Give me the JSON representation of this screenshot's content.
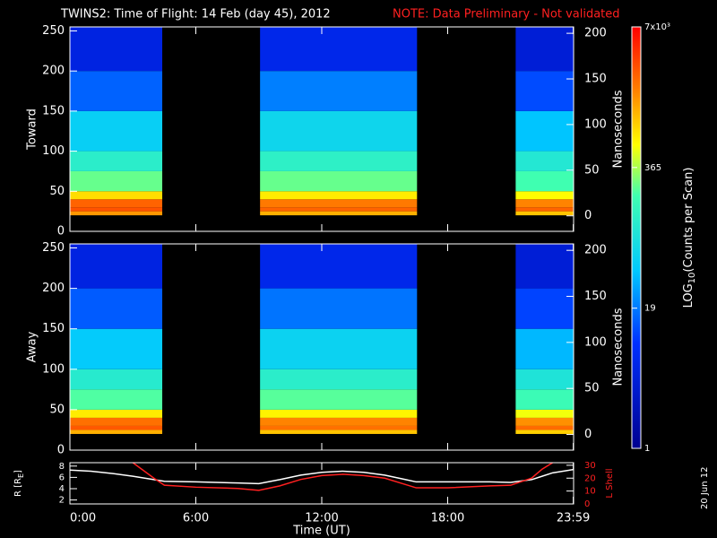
{
  "title": "TWINS2: Time of Flight: 14 Feb (day  45), 2012",
  "note": "NOTE: Data Preliminary - Not validated",
  "date": "20 Jun 12",
  "time_axis": {
    "label": "Time (UT)",
    "xlim": [
      0,
      24
    ],
    "xticks": [
      {
        "value": 0,
        "label": "0:00"
      },
      {
        "value": 6,
        "label": "6:00"
      },
      {
        "value": 12,
        "label": "12:00"
      },
      {
        "value": 18,
        "label": "18:00"
      },
      {
        "value": 23.983,
        "label": "23:59"
      }
    ]
  },
  "colorbar": {
    "label_parts": [
      "LOG",
      "10",
      "(Counts per Scan)"
    ],
    "clim": [
      1,
      7000
    ],
    "log": true,
    "ticks": [
      {
        "value": 7000,
        "label": "7x10³"
      },
      365,
      19,
      1
    ]
  },
  "chart_data": [
    {
      "type": "heatmap",
      "ylabel": "Toward",
      "y2label": "Nanoseconds",
      "ylim": [
        0,
        255
      ],
      "yticks": [
        0,
        50,
        100,
        150,
        200,
        250
      ],
      "y2lim": [
        -17,
        207
      ],
      "y2ticks": [
        0,
        50,
        100,
        150,
        200
      ],
      "channel_bins": [
        20,
        25,
        30,
        40,
        50,
        75,
        100,
        150,
        200,
        255
      ],
      "intervals": [
        [
          0,
          4.4
        ],
        [
          9.06,
          16.54
        ],
        [
          21.24,
          23.983
        ]
      ],
      "counts": [
        [
          1500,
          3000,
          2500,
          800,
          250,
          120,
          50,
          15,
          5
        ],
        [
          1200,
          2500,
          2000,
          700,
          250,
          130,
          60,
          20,
          6
        ],
        [
          1000,
          2500,
          1800,
          600,
          200,
          100,
          40,
          12,
          4
        ]
      ]
    },
    {
      "type": "heatmap",
      "ylabel": "Away",
      "y2label": "Nanoseconds",
      "ylim": [
        0,
        255
      ],
      "yticks": [
        0,
        50,
        100,
        150,
        200,
        250
      ],
      "y2lim": [
        -17,
        207
      ],
      "y2ticks": [
        0,
        50,
        100,
        150,
        200
      ],
      "channel_bins": [
        20,
        25,
        30,
        40,
        50,
        75,
        100,
        150,
        200,
        255
      ],
      "intervals": [
        [
          0,
          4.4
        ],
        [
          9.06,
          16.54
        ],
        [
          21.24,
          23.983
        ]
      ],
      "counts": [
        [
          1200,
          2800,
          2200,
          700,
          220,
          110,
          45,
          14,
          5
        ],
        [
          1000,
          2200,
          1800,
          650,
          230,
          120,
          55,
          18,
          6
        ],
        [
          900,
          2300,
          1600,
          550,
          180,
          90,
          35,
          11,
          4
        ]
      ]
    },
    {
      "type": "line",
      "ylabel_parts": [
        "R [R",
        "E",
        "]"
      ],
      "y2label": "L Shell",
      "ylim": [
        1.3,
        8.6
      ],
      "yticks": [
        2,
        4,
        6,
        8
      ],
      "y2lim": [
        0,
        32
      ],
      "y2ticks": [
        0,
        10,
        20,
        30
      ],
      "x": [
        0,
        1,
        2,
        3,
        4,
        4.5,
        6,
        8,
        9,
        10,
        11,
        12,
        13,
        14,
        15,
        16,
        16.5,
        18,
        20,
        21,
        22,
        22.5,
        23,
        24
      ],
      "series": [
        {
          "name": "R",
          "color": "#ffffff",
          "values": [
            7.3,
            7.1,
            6.7,
            6.2,
            5.6,
            5.3,
            5.2,
            5.0,
            4.9,
            5.6,
            6.4,
            6.9,
            7.1,
            6.9,
            6.4,
            5.6,
            5.2,
            5.2,
            5.2,
            5.1,
            5.6,
            6.2,
            6.8,
            7.4
          ]
        },
        {
          "name": "L Shell",
          "color": "#ff2020",
          "axis": "y2",
          "values": [
            null,
            null,
            null,
            32,
            20,
            14.5,
            13,
            12,
            10.5,
            14,
            19,
            22,
            23,
            22,
            20,
            15,
            12.5,
            12.5,
            14,
            14.5,
            20,
            27,
            32,
            null
          ]
        }
      ]
    }
  ]
}
